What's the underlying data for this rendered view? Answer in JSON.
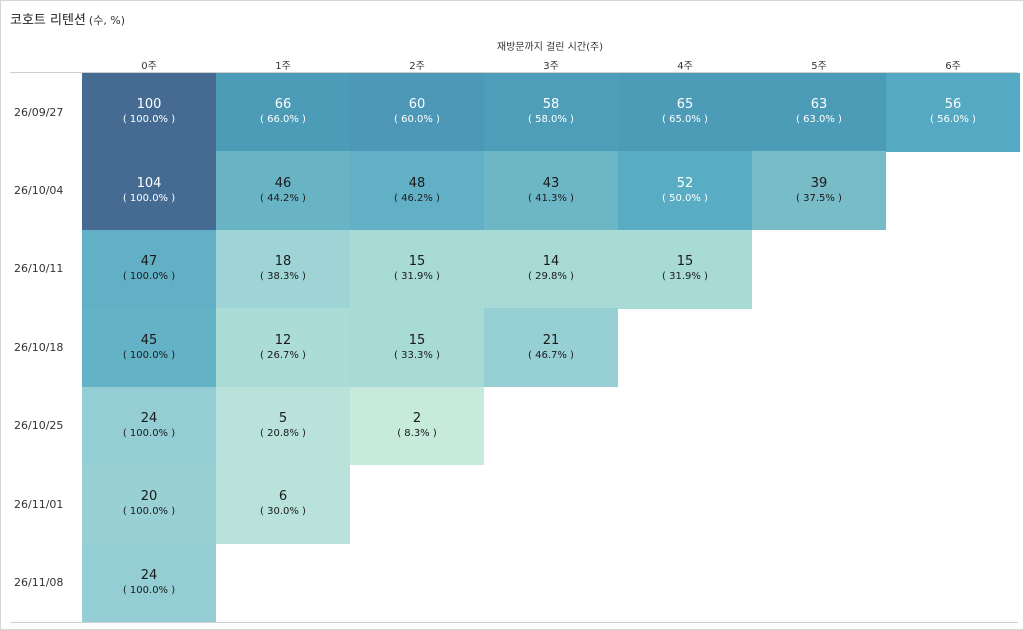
{
  "title": "코호트 리텐션",
  "subtitle": "(수, %)",
  "chart_data": {
    "type": "heatmap",
    "title": "코호트 리텐션",
    "subtitle": "(수, %)",
    "xlabel": "재방문까지 걸린 시간(주)",
    "ylabel": "",
    "columns": [
      "0주",
      "1주",
      "2주",
      "3주",
      "4주",
      "5주",
      "6주"
    ],
    "rows": [
      {
        "cohort": "26/09/27",
        "counts": [
          100,
          66,
          60,
          58,
          65,
          63,
          56
        ],
        "percents": [
          "( 100.0% )",
          "( 66.0% )",
          "( 60.0% )",
          "( 58.0% )",
          "( 65.0% )",
          "( 63.0% )",
          "( 56.0% )"
        ],
        "colors": [
          "#456b93",
          "#4c9cb8",
          "#4c98b6",
          "#4e9eba",
          "#4c9cb8",
          "#4c9cb8",
          "#56a9c2"
        ]
      },
      {
        "cohort": "26/10/04",
        "counts": [
          104,
          46,
          48,
          43,
          52,
          39
        ],
        "percents": [
          "( 100.0% )",
          "( 44.2% )",
          "( 46.2% )",
          "( 41.3% )",
          "( 50.0% )",
          "( 37.5% )"
        ],
        "colors": [
          "#456b93",
          "#68b4c4",
          "#62b0c6",
          "#6cb6c6",
          "#58acc4",
          "#78bcc8"
        ]
      },
      {
        "cohort": "26/10/11",
        "counts": [
          47,
          18,
          15,
          14,
          15
        ],
        "percents": [
          "( 100.0% )",
          "( 38.3% )",
          "( 31.9% )",
          "( 29.8% )",
          "( 31.9% )"
        ],
        "colors": [
          "#62b0c6",
          "#9ed4d6",
          "#a8dad6",
          "#a8dad6",
          "#a8dad6"
        ]
      },
      {
        "cohort": "26/10/18",
        "counts": [
          45,
          12,
          15,
          21
        ],
        "percents": [
          "( 100.0% )",
          "( 26.7% )",
          "( 33.3% )",
          "( 46.7% )"
        ],
        "colors": [
          "#64b2c6",
          "#acdcd8",
          "#a8dad6",
          "#96d0d4"
        ]
      },
      {
        "cohort": "26/10/25",
        "counts": [
          24,
          5,
          2
        ],
        "percents": [
          "( 100.0% )",
          "( 20.8% )",
          "( 8.3% )"
        ],
        "colors": [
          "#94ced4",
          "#b8e2da",
          "#c6eadc"
        ]
      },
      {
        "cohort": "26/11/01",
        "counts": [
          20,
          6
        ],
        "percents": [
          "( 100.0% )",
          "( 30.0% )"
        ],
        "colors": [
          "#98d0d4",
          "#b8e2da"
        ]
      },
      {
        "cohort": "26/11/08",
        "counts": [
          24
        ],
        "percents": [
          "( 100.0% )"
        ],
        "colors": [
          "#94ced4"
        ]
      }
    ],
    "grid": false,
    "legend": "none"
  }
}
